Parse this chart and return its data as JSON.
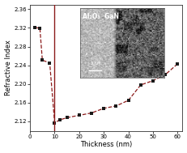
{
  "x_data": [
    2,
    4,
    5,
    8,
    10,
    12,
    15,
    20,
    25,
    30,
    35,
    40,
    45,
    50,
    55,
    60
  ],
  "y_data": [
    2.321,
    2.319,
    2.251,
    2.245,
    2.117,
    2.123,
    2.128,
    2.133,
    2.138,
    2.148,
    2.153,
    2.165,
    2.198,
    2.207,
    2.22,
    2.243
  ],
  "vline_x": 10,
  "xlim": [
    0,
    62
  ],
  "ylim": [
    2.1,
    2.37
  ],
  "yticks": [
    2.12,
    2.16,
    2.2,
    2.24,
    2.28,
    2.32,
    2.36
  ],
  "xticks": [
    0,
    10,
    20,
    30,
    40,
    50,
    60
  ],
  "xlabel": "Thickness (nm)",
  "ylabel": "Refractive Index",
  "line_color": "#8B1A1A",
  "marker_color": "#1a1a1a",
  "vline_color": "#8B1A1A",
  "bg_color": "#ffffff",
  "inset_label": "Al₂O₃  GaN",
  "scalebar_text": "2 nm"
}
